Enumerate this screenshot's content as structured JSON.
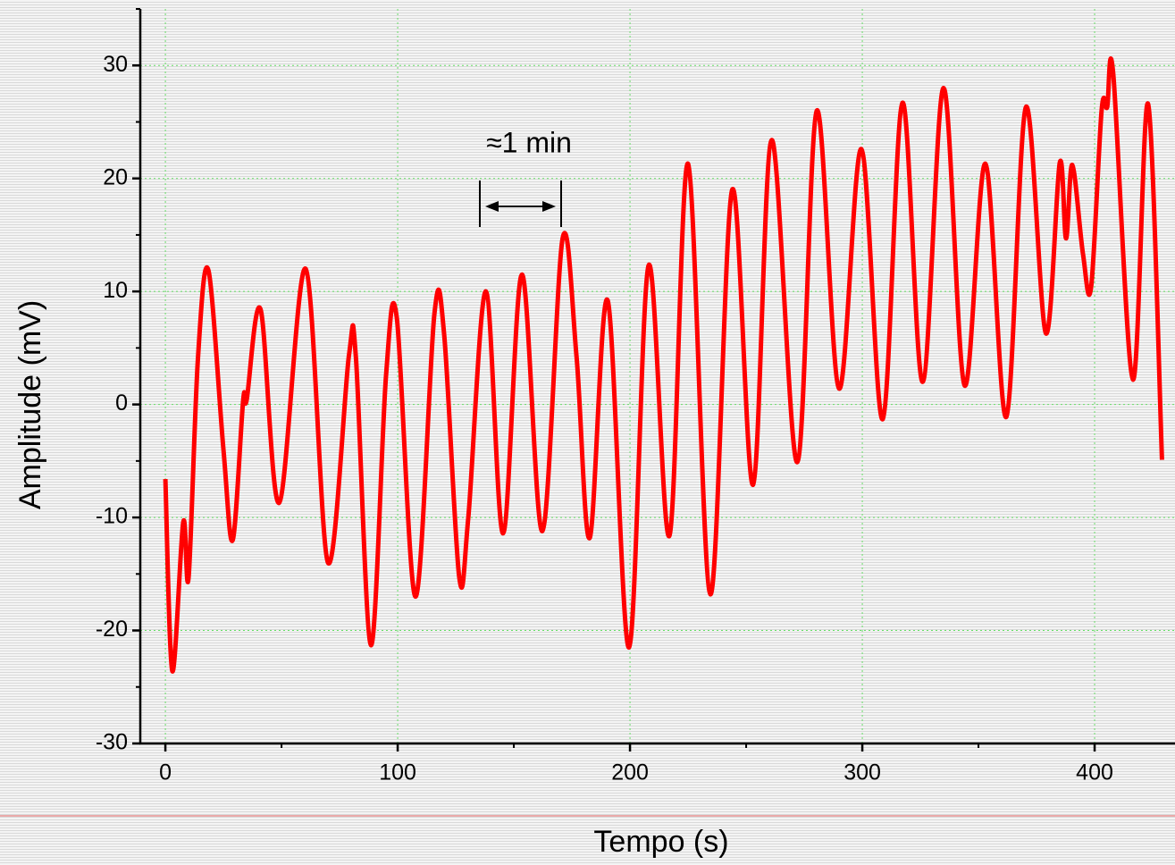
{
  "chart_data": {
    "type": "line",
    "x_label": "Tempo (s)",
    "y_label": "Amplitude (mV)",
    "annotation": "≈1 min",
    "xlim": [
      -10.8,
      434.6
    ],
    "ylim": [
      -30,
      35
    ],
    "xticks": [
      0,
      100,
      200,
      300,
      400
    ],
    "yticks": [
      -30,
      -20,
      -10,
      0,
      10,
      20,
      30
    ],
    "minor_xticks": [
      50,
      150,
      250,
      350
    ],
    "minor_yticks": [
      -25,
      -15,
      -5,
      5,
      15,
      25,
      35
    ],
    "grid": true,
    "grid_color": "#66dd66",
    "series": [
      {
        "name": "Amplitude",
        "color": "#ff0000",
        "x": [
          0,
          3,
          7.7,
          10,
          14,
          18.5,
          25,
          29,
          33.5,
          35,
          41,
          49,
          60.4,
          70,
          79,
          82,
          88.5,
          95,
          99.6,
          107.7,
          115.8,
          120,
          126.5,
          130.4,
          138,
          145.4,
          153.5,
          162.3,
          171,
          177,
          182.7,
          190.4,
          199.6,
          208,
          217,
          225,
          234.6,
          244,
          253,
          261,
          272,
          280.4,
          290,
          299.6,
          308.8,
          317.3,
          326,
          335,
          344,
          353,
          362,
          370.4,
          379,
          385,
          387.7,
          390.4,
          395,
          398.5,
          403,
          405.4,
          408,
          416.5,
          423,
          429
        ],
        "values": [
          -6.6,
          -23.6,
          -10.4,
          -15.3,
          4,
          11.9,
          -4,
          -12,
          0.4,
          0.4,
          8.4,
          -8.7,
          12,
          -14,
          4.3,
          4.2,
          -21.3,
          2.6,
          7.7,
          -17,
          8,
          6.2,
          -15.3,
          -10,
          10,
          -11.4,
          11.5,
          -11.2,
          14.7,
          4.2,
          -11.8,
          9.2,
          -21.5,
          12.3,
          -11.6,
          21.3,
          -16.8,
          19,
          -7.1,
          23.4,
          -5.1,
          26,
          1.4,
          22.6,
          -1.3,
          26.7,
          2,
          28,
          1.7,
          21.3,
          -1.1,
          26.3,
          6.3,
          21.4,
          14.7,
          21.2,
          13.3,
          10.4,
          26,
          26.3,
          29.3,
          2.2,
          26.6,
          -4.9
        ]
      }
    ]
  }
}
